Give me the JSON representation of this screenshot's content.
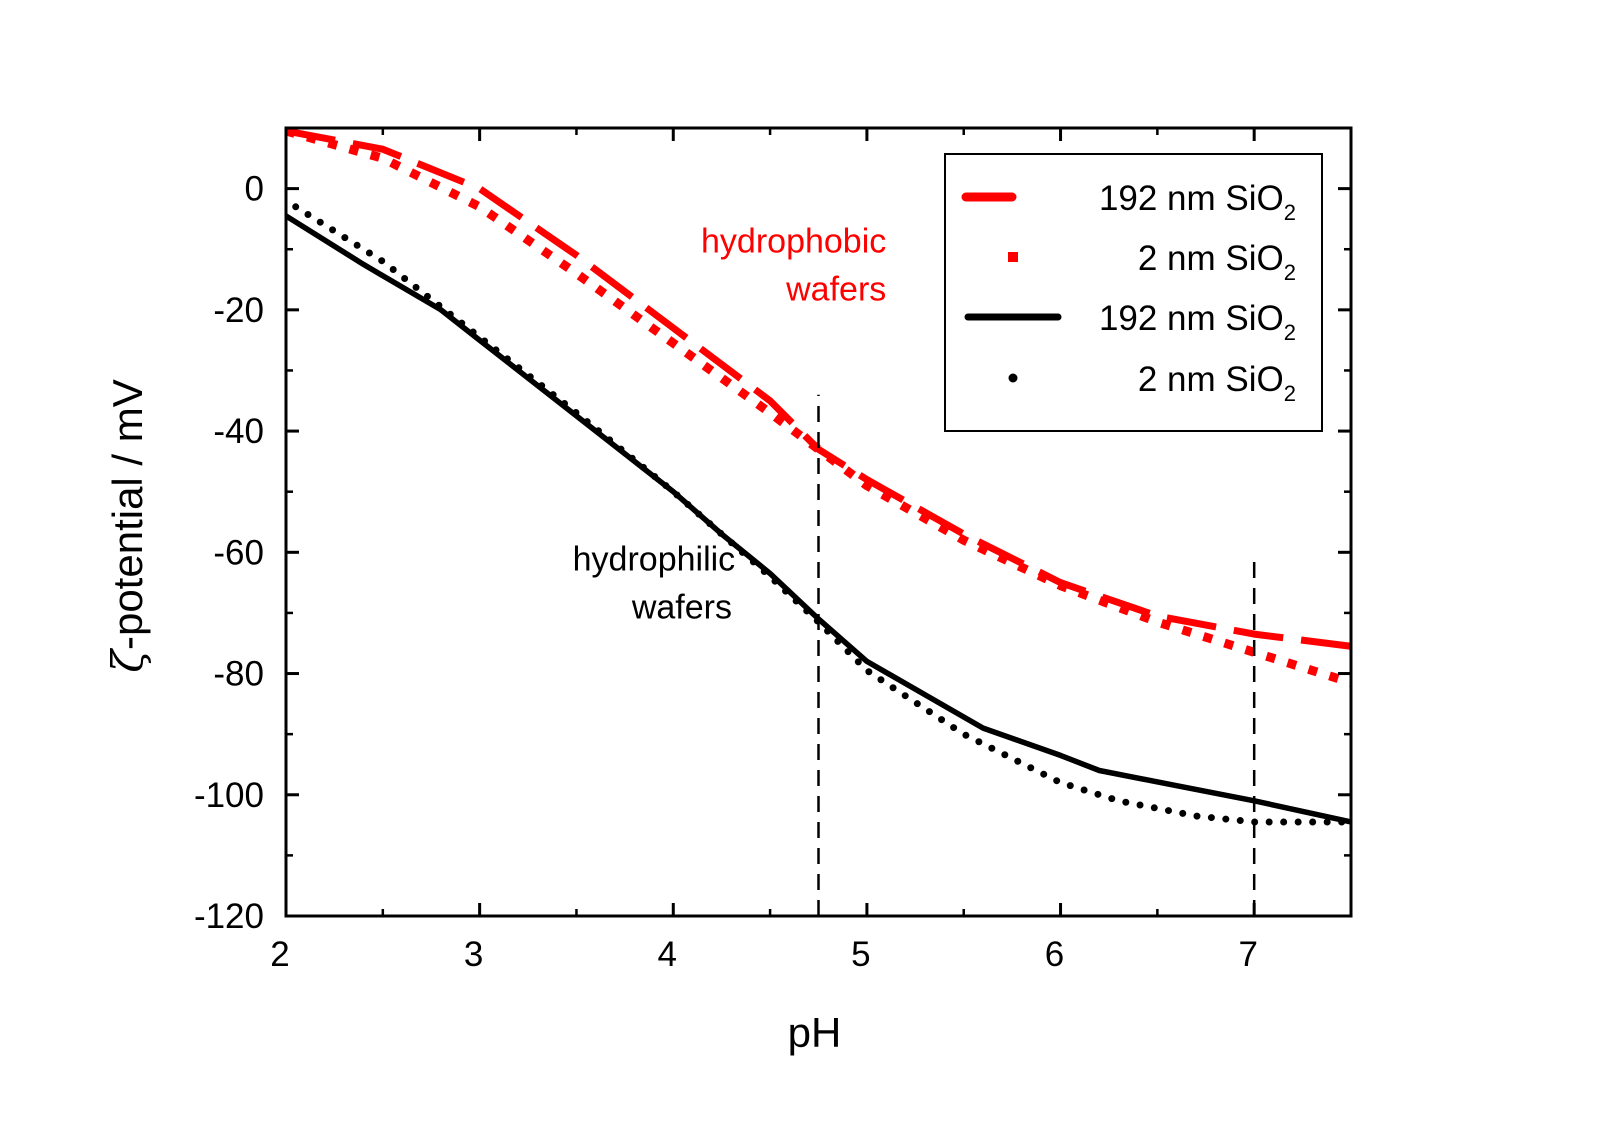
{
  "chart_data": {
    "type": "line",
    "title": "",
    "xlabel": "pH",
    "ylabel_symbol": "ζ",
    "ylabel_text": "-potential / mV",
    "xlim": [
      2,
      7.5
    ],
    "ylim": [
      -120,
      10
    ],
    "x_ticks": [
      2,
      3,
      4,
      5,
      6,
      7
    ],
    "x_tick_labels": [
      "2",
      "3",
      "4",
      "5",
      "6",
      "7"
    ],
    "y_ticks": [
      0,
      -20,
      -40,
      -60,
      -80,
      -100,
      -120
    ],
    "y_tick_labels": [
      "0",
      "-20",
      "-40",
      "-60",
      "-80",
      "-100",
      "-120"
    ],
    "grid": false,
    "legend_position": "top-right",
    "series": [
      {
        "name": "192 nm SiO2",
        "legend_label": "192 nm SiO",
        "legend_sub": "2",
        "color": "#ff0000",
        "style": "dash",
        "points": [
          [
            2.0,
            9.5
          ],
          [
            2.5,
            6.5
          ],
          [
            3.0,
            0.0
          ],
          [
            3.5,
            -11.0
          ],
          [
            4.0,
            -23.0
          ],
          [
            4.5,
            -35.0
          ],
          [
            4.75,
            -43.0
          ],
          [
            5.0,
            -48.0
          ],
          [
            5.5,
            -57.0
          ],
          [
            6.0,
            -65.0
          ],
          [
            6.5,
            -70.5
          ],
          [
            7.0,
            -73.5
          ],
          [
            7.5,
            -75.5
          ]
        ]
      },
      {
        "name": "2 nm SiO2",
        "legend_label": "2 nm SiO",
        "legend_sub": "2",
        "color": "#ff0000",
        "style": "square-dots",
        "points": [
          [
            2.0,
            9.5
          ],
          [
            2.5,
            5.0
          ],
          [
            3.0,
            -3.0
          ],
          [
            3.5,
            -14.0
          ],
          [
            4.0,
            -25.5
          ],
          [
            4.5,
            -37.0
          ],
          [
            4.75,
            -43.0
          ],
          [
            5.0,
            -49.0
          ],
          [
            5.5,
            -58.0
          ],
          [
            6.0,
            -65.5
          ],
          [
            6.5,
            -71.5
          ],
          [
            7.0,
            -76.5
          ],
          [
            7.5,
            -81.5
          ]
        ]
      },
      {
        "name": "192 nm SiO2",
        "legend_label": "192 nm SiO",
        "legend_sub": "2",
        "color": "#000000",
        "style": "solid",
        "points": [
          [
            2.0,
            -4.5
          ],
          [
            2.4,
            -12.5
          ],
          [
            2.8,
            -20.0
          ],
          [
            3.0,
            -25.0
          ],
          [
            3.5,
            -37.5
          ],
          [
            4.0,
            -50.0
          ],
          [
            4.25,
            -57.0
          ],
          [
            4.5,
            -63.5
          ],
          [
            4.75,
            -71.0
          ],
          [
            5.0,
            -78.0
          ],
          [
            5.3,
            -83.5
          ],
          [
            5.6,
            -89.0
          ],
          [
            6.0,
            -93.5
          ],
          [
            6.2,
            -96.0
          ],
          [
            6.6,
            -98.5
          ],
          [
            7.0,
            -101.0
          ],
          [
            7.5,
            -104.5
          ]
        ]
      },
      {
        "name": "2 nm SiO2",
        "legend_label": "2 nm SiO",
        "legend_sub": "2",
        "color": "#000000",
        "style": "round-dots",
        "points": [
          [
            2.05,
            -3.0
          ],
          [
            2.5,
            -12.0
          ],
          [
            3.0,
            -24.5
          ],
          [
            3.5,
            -37.0
          ],
          [
            4.0,
            -50.0
          ],
          [
            4.5,
            -64.0
          ],
          [
            4.75,
            -71.5
          ],
          [
            5.0,
            -79.5
          ],
          [
            5.5,
            -90.0
          ],
          [
            6.0,
            -98.0
          ],
          [
            6.3,
            -101.0
          ],
          [
            6.7,
            -103.5
          ],
          [
            7.0,
            -104.5
          ],
          [
            7.5,
            -104.5
          ]
        ]
      }
    ],
    "vlines": [
      {
        "x": 4.75,
        "y_from": -120,
        "y_to": -34
      },
      {
        "x": 7.0,
        "y_from": -120,
        "y_to": -60
      }
    ],
    "annotations": [
      {
        "id": "hydrophobic",
        "lines": [
          "hydrophobic",
          "wafers"
        ],
        "color": "#ff0000",
        "x": 5.1,
        "y": -10.5,
        "align": "end"
      },
      {
        "id": "hydrophilic",
        "lines": [
          "hydrophilic",
          "wafers"
        ],
        "color": "#000000",
        "x": 3.9,
        "y": -63.0,
        "align": "middle"
      }
    ]
  }
}
